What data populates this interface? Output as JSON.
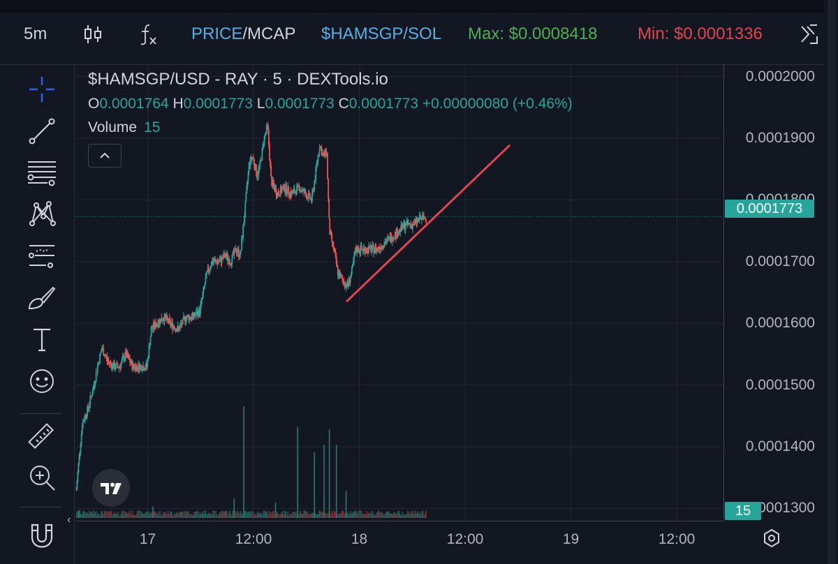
{
  "toolbar": {
    "interval": "5m",
    "price_label": "PRICE",
    "mcap_label": "MCAP",
    "pair_sol": "$HAMSGP/SOL",
    "max_label": "Max: $0.0008418",
    "min_label": "Min: $0.0001336"
  },
  "legend": {
    "title": "$HAMSGP/USD - RAY · 5 · DEXTools.io",
    "o_key": "O",
    "o_val": "0.0001764",
    "h_key": "H",
    "h_val": "0.0001773",
    "l_key": "L",
    "l_val": "0.0001773",
    "c_key": "C",
    "c_val": "0.0001773",
    "change": "+0.00000080 (+0.46%)",
    "volume_label": "Volume",
    "volume_value": "15"
  },
  "badges": {
    "last_price": "0.0001773",
    "last_volume": "15"
  },
  "colors": {
    "up": "#26a69a",
    "down": "#ef5350",
    "trendline": "#e0464f",
    "background": "#131722",
    "max": "#4caf50",
    "min": "#e0464f"
  },
  "icons": [
    "crosshair-icon",
    "trendline-icon",
    "fib-icon",
    "pattern-icon",
    "prediction-icon",
    "brush-icon",
    "text-icon",
    "emoji-icon",
    "ruler-icon",
    "zoom-in-icon",
    "magnet-icon",
    "candles-icon",
    "indicators-icon",
    "collapse-icon",
    "settings-icon"
  ],
  "chart_data": {
    "type": "candlestick",
    "ylim": [
      0.000128,
      0.000202
    ],
    "y_ticks": [
      "0.0002000",
      "0.0001900",
      "0.0001800",
      "0.0001700",
      "0.0001600",
      "0.0001500",
      "0.0001400",
      "0.0001300"
    ],
    "y_tick_values": [
      0.0002,
      0.00019,
      0.00018,
      0.00017,
      0.00016,
      0.00015,
      0.00014,
      0.00013
    ],
    "x_ticks": [
      "17",
      "12:00",
      "18",
      "12:00",
      "19",
      "12:00"
    ],
    "x_tick_hours": [
      24,
      36,
      48,
      60,
      72,
      84
    ],
    "x_range_hours": [
      15.8,
      89.3
    ],
    "last_price": 0.0001773,
    "grid": true,
    "series_path": [
      [
        15.9,
        0.000133
      ],
      [
        16.2,
        0.000138
      ],
      [
        16.6,
        0.000144
      ],
      [
        17.2,
        0.000146
      ],
      [
        17.9,
        0.00015
      ],
      [
        18.3,
        0.000153
      ],
      [
        18.8,
        0.000156
      ],
      [
        19.4,
        0.000154
      ],
      [
        20.1,
        0.000153
      ],
      [
        20.8,
        0.000153
      ],
      [
        21.5,
        0.000155
      ],
      [
        22.3,
        0.000153
      ],
      [
        23.0,
        0.000153
      ],
      [
        23.9,
        0.000153
      ],
      [
        24.4,
        0.000159
      ],
      [
        25.0,
        0.00016
      ],
      [
        25.8,
        0.000161
      ],
      [
        26.5,
        0.00016
      ],
      [
        27.5,
        0.000159
      ],
      [
        28.3,
        0.000161
      ],
      [
        29.1,
        0.000161
      ],
      [
        29.9,
        0.000162
      ],
      [
        30.7,
        0.000168
      ],
      [
        31.3,
        0.00017
      ],
      [
        32.1,
        0.00017
      ],
      [
        32.8,
        0.000171
      ],
      [
        33.4,
        0.00017
      ],
      [
        34.0,
        0.000172
      ],
      [
        34.5,
        0.000171
      ],
      [
        35.0,
        0.000178
      ],
      [
        35.5,
        0.000186
      ],
      [
        35.9,
        0.000187
      ],
      [
        36.4,
        0.000184
      ],
      [
        36.8,
        0.000186
      ],
      [
        37.2,
        0.00019
      ],
      [
        37.6,
        0.000192
      ],
      [
        38.0,
        0.000183
      ],
      [
        38.7,
        0.000181
      ],
      [
        39.5,
        0.000182
      ],
      [
        40.3,
        0.000181
      ],
      [
        41.2,
        0.000182
      ],
      [
        41.9,
        0.000181
      ],
      [
        42.6,
        0.00018
      ],
      [
        43.0,
        0.000184
      ],
      [
        43.5,
        0.000189
      ],
      [
        43.9,
        0.000187
      ],
      [
        44.3,
        0.000188
      ],
      [
        44.6,
        0.000175
      ],
      [
        45.1,
        0.000172
      ],
      [
        45.6,
        0.000168
      ],
      [
        46.1,
        0.000167
      ],
      [
        46.6,
        0.000166
      ],
      [
        47.1,
        0.000168
      ],
      [
        47.6,
        0.000172
      ],
      [
        48.4,
        0.000172
      ],
      [
        49.2,
        0.000172
      ],
      [
        50.0,
        0.000172
      ],
      [
        50.8,
        0.000173
      ],
      [
        51.7,
        0.000174
      ],
      [
        52.5,
        0.000175
      ],
      [
        53.3,
        0.000176
      ],
      [
        54.1,
        0.000176
      ],
      [
        54.9,
        0.000177
      ],
      [
        55.6,
        0.000177
      ]
    ],
    "volume_spikes": [
      [
        34.9,
        1.45e-05
      ],
      [
        41.0,
        1.18e-05
      ],
      [
        42.9,
        8.5e-06
      ],
      [
        44.0,
        9.5e-06
      ],
      [
        44.6,
        1.15e-05
      ],
      [
        45.4,
        9.5e-06
      ],
      [
        46.5,
        3.5e-06
      ],
      [
        33.8,
        2.5e-06
      ],
      [
        24.6,
        1.5e-06
      ],
      [
        38.5,
        2e-06
      ],
      [
        16.2,
        1e-06
      ]
    ],
    "annotations": [
      {
        "type": "trendline",
        "color": "#e0464f",
        "from": {
          "x": 46.6,
          "y": 0.0001636
        },
        "to": {
          "x": 65.0,
          "y": 0.0001888
        }
      }
    ]
  }
}
